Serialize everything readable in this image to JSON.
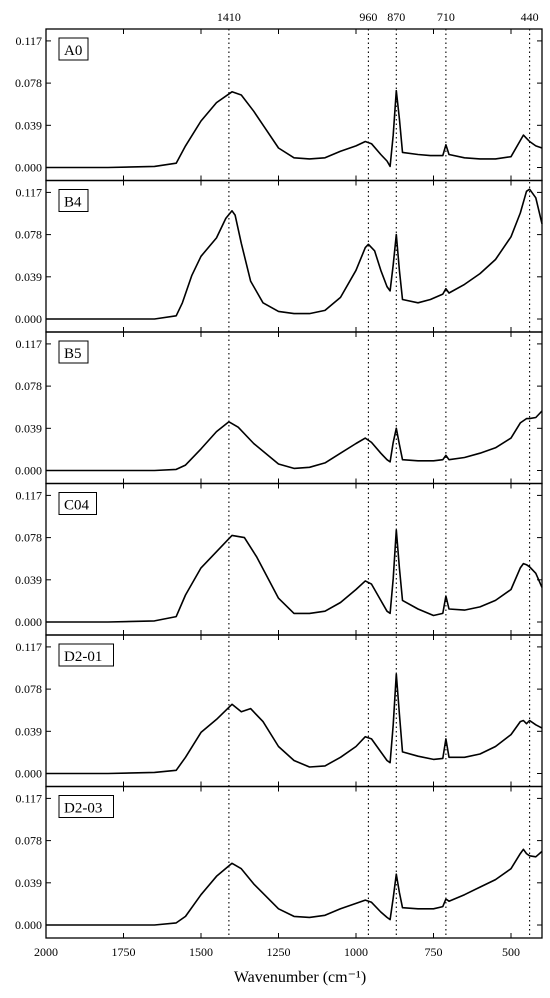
{
  "chart_data": {
    "type": "line",
    "layout": "stacked-panels",
    "xlabel": "Wavenumber (cm⁻¹)",
    "xlim": [
      2000,
      400
    ],
    "x_reversed": true,
    "x_ticks": [
      2000,
      1750,
      1500,
      1250,
      1000,
      750,
      500
    ],
    "ylim": [
      -0.012,
      0.128
    ],
    "y_ticks": [
      "0.000",
      "0.039",
      "0.078",
      "0.117"
    ],
    "reference_lines": [
      1410,
      960,
      870,
      710,
      440
    ],
    "grid": false,
    "panels": [
      {
        "label": "A0",
        "x": [
          2000,
          1800,
          1650,
          1580,
          1550,
          1500,
          1450,
          1400,
          1370,
          1330,
          1250,
          1200,
          1150,
          1100,
          1050,
          1000,
          970,
          950,
          920,
          900,
          890,
          880,
          870,
          860,
          850,
          800,
          760,
          720,
          710,
          700,
          650,
          600,
          550,
          500,
          470,
          460,
          450,
          440,
          420,
          400
        ],
        "y": [
          0.0,
          0.0,
          0.001,
          0.004,
          0.02,
          0.043,
          0.06,
          0.07,
          0.067,
          0.052,
          0.018,
          0.009,
          0.008,
          0.009,
          0.015,
          0.02,
          0.024,
          0.022,
          0.012,
          0.006,
          0.001,
          0.03,
          0.071,
          0.045,
          0.014,
          0.012,
          0.011,
          0.011,
          0.021,
          0.012,
          0.009,
          0.008,
          0.008,
          0.01,
          0.025,
          0.03,
          0.027,
          0.024,
          0.02,
          0.018
        ]
      },
      {
        "label": "B4",
        "x": [
          2000,
          1800,
          1650,
          1580,
          1560,
          1530,
          1500,
          1450,
          1420,
          1400,
          1390,
          1370,
          1340,
          1300,
          1250,
          1200,
          1150,
          1100,
          1050,
          1000,
          970,
          960,
          940,
          920,
          900,
          890,
          880,
          870,
          860,
          850,
          800,
          760,
          720,
          710,
          700,
          650,
          600,
          550,
          500,
          470,
          450,
          440,
          420,
          400
        ],
        "y": [
          0.0,
          0.0,
          0.0,
          0.003,
          0.015,
          0.04,
          0.058,
          0.075,
          0.093,
          0.1,
          0.096,
          0.07,
          0.035,
          0.015,
          0.007,
          0.005,
          0.005,
          0.008,
          0.02,
          0.045,
          0.066,
          0.069,
          0.063,
          0.045,
          0.03,
          0.026,
          0.05,
          0.078,
          0.045,
          0.018,
          0.015,
          0.018,
          0.023,
          0.028,
          0.024,
          0.032,
          0.042,
          0.055,
          0.076,
          0.098,
          0.118,
          0.12,
          0.112,
          0.088
        ]
      },
      {
        "label": "B5",
        "x": [
          2000,
          1800,
          1650,
          1580,
          1550,
          1500,
          1450,
          1410,
          1380,
          1330,
          1250,
          1200,
          1150,
          1100,
          1050,
          1000,
          970,
          950,
          920,
          900,
          890,
          880,
          870,
          860,
          850,
          800,
          750,
          720,
          710,
          700,
          650,
          600,
          550,
          500,
          470,
          450,
          440,
          420,
          400
        ],
        "y": [
          0.0,
          0.0,
          0.0,
          0.001,
          0.005,
          0.02,
          0.036,
          0.045,
          0.04,
          0.025,
          0.006,
          0.002,
          0.003,
          0.007,
          0.016,
          0.025,
          0.03,
          0.026,
          0.016,
          0.01,
          0.008,
          0.026,
          0.039,
          0.024,
          0.01,
          0.009,
          0.009,
          0.01,
          0.014,
          0.01,
          0.012,
          0.016,
          0.021,
          0.03,
          0.044,
          0.048,
          0.048,
          0.049,
          0.055
        ]
      },
      {
        "label": "C04",
        "x": [
          2000,
          1800,
          1650,
          1580,
          1550,
          1500,
          1450,
          1400,
          1360,
          1320,
          1250,
          1200,
          1150,
          1100,
          1050,
          1000,
          970,
          950,
          920,
          900,
          890,
          880,
          870,
          860,
          850,
          800,
          750,
          720,
          710,
          700,
          650,
          600,
          550,
          500,
          470,
          460,
          450,
          440,
          420,
          400
        ],
        "y": [
          0.0,
          0.0,
          0.001,
          0.005,
          0.025,
          0.05,
          0.065,
          0.08,
          0.078,
          0.06,
          0.022,
          0.008,
          0.008,
          0.01,
          0.018,
          0.03,
          0.038,
          0.035,
          0.02,
          0.01,
          0.008,
          0.04,
          0.085,
          0.05,
          0.02,
          0.012,
          0.006,
          0.008,
          0.024,
          0.012,
          0.011,
          0.014,
          0.02,
          0.03,
          0.05,
          0.054,
          0.053,
          0.051,
          0.045,
          0.032
        ]
      },
      {
        "label": "D2-01",
        "x": [
          2000,
          1800,
          1650,
          1580,
          1550,
          1500,
          1450,
          1400,
          1370,
          1340,
          1300,
          1250,
          1200,
          1150,
          1100,
          1050,
          1000,
          970,
          950,
          920,
          900,
          890,
          880,
          870,
          860,
          850,
          800,
          750,
          720,
          710,
          700,
          650,
          600,
          550,
          500,
          470,
          460,
          450,
          440,
          420,
          400
        ],
        "y": [
          0.0,
          0.0,
          0.001,
          0.003,
          0.015,
          0.038,
          0.05,
          0.064,
          0.057,
          0.06,
          0.048,
          0.025,
          0.012,
          0.006,
          0.007,
          0.015,
          0.025,
          0.034,
          0.032,
          0.02,
          0.012,
          0.01,
          0.045,
          0.092,
          0.055,
          0.02,
          0.016,
          0.013,
          0.014,
          0.032,
          0.015,
          0.015,
          0.018,
          0.025,
          0.036,
          0.048,
          0.049,
          0.046,
          0.049,
          0.045,
          0.042
        ]
      },
      {
        "label": "D2-03",
        "x": [
          2000,
          1800,
          1650,
          1580,
          1550,
          1500,
          1450,
          1400,
          1370,
          1330,
          1250,
          1200,
          1150,
          1100,
          1050,
          1000,
          970,
          950,
          920,
          900,
          890,
          880,
          870,
          860,
          850,
          800,
          750,
          720,
          710,
          700,
          650,
          600,
          550,
          500,
          470,
          460,
          450,
          440,
          420,
          400
        ],
        "y": [
          0.0,
          0.0,
          0.0,
          0.002,
          0.008,
          0.028,
          0.045,
          0.057,
          0.052,
          0.038,
          0.015,
          0.008,
          0.007,
          0.009,
          0.015,
          0.02,
          0.023,
          0.021,
          0.012,
          0.007,
          0.005,
          0.025,
          0.047,
          0.03,
          0.016,
          0.015,
          0.015,
          0.017,
          0.024,
          0.022,
          0.028,
          0.035,
          0.042,
          0.052,
          0.066,
          0.07,
          0.066,
          0.064,
          0.063,
          0.068
        ]
      }
    ]
  }
}
